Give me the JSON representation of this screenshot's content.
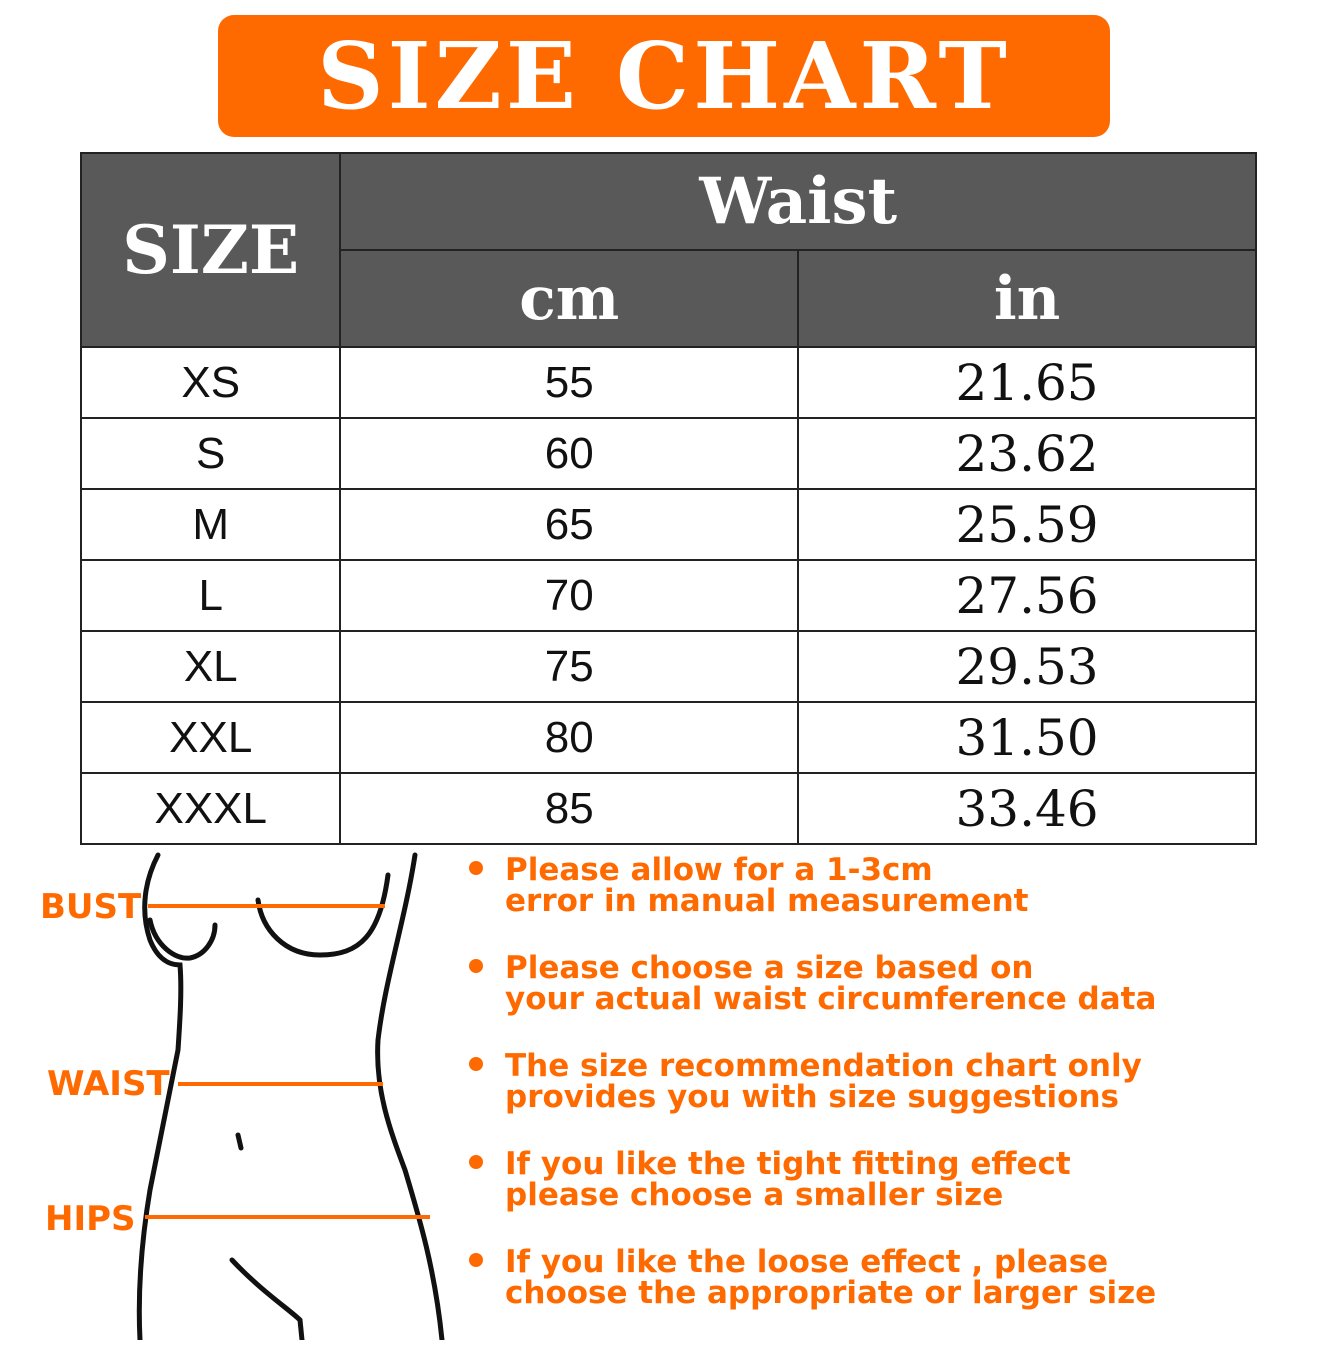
{
  "title": "SIZE CHART",
  "table": {
    "size_header": "SIZE",
    "group_header": "Waist",
    "units": [
      "cm",
      "in"
    ],
    "rows": [
      {
        "size": "XS",
        "cm": "55",
        "in": "21.65"
      },
      {
        "size": "S",
        "cm": "60",
        "in": "23.62"
      },
      {
        "size": "M",
        "cm": "65",
        "in": "25.59"
      },
      {
        "size": "L",
        "cm": "70",
        "in": "27.56"
      },
      {
        "size": "XL",
        "cm": "75",
        "in": "29.53"
      },
      {
        "size": "XXL",
        "cm": "80",
        "in": "31.50"
      },
      {
        "size": "XXXL",
        "cm": "85",
        "in": "33.46"
      }
    ]
  },
  "measure_labels": {
    "bust": "BUST",
    "waist": "WAIST",
    "hips": "HIPS"
  },
  "tips": [
    [
      "Please allow for a 1-3cm",
      "error in manual measurement"
    ],
    [
      "Please choose a size based on",
      "your actual waist circumference data"
    ],
    [
      "The size recommendation chart only",
      "provides you with size suggestions"
    ],
    [
      "If you like the tight fitting effect",
      "please choose a smaller size"
    ],
    [
      "If you like the loose effect , please",
      "choose the appropriate or larger size"
    ]
  ],
  "colors": {
    "accent": "#ff6a00",
    "header_bg": "#595959"
  }
}
